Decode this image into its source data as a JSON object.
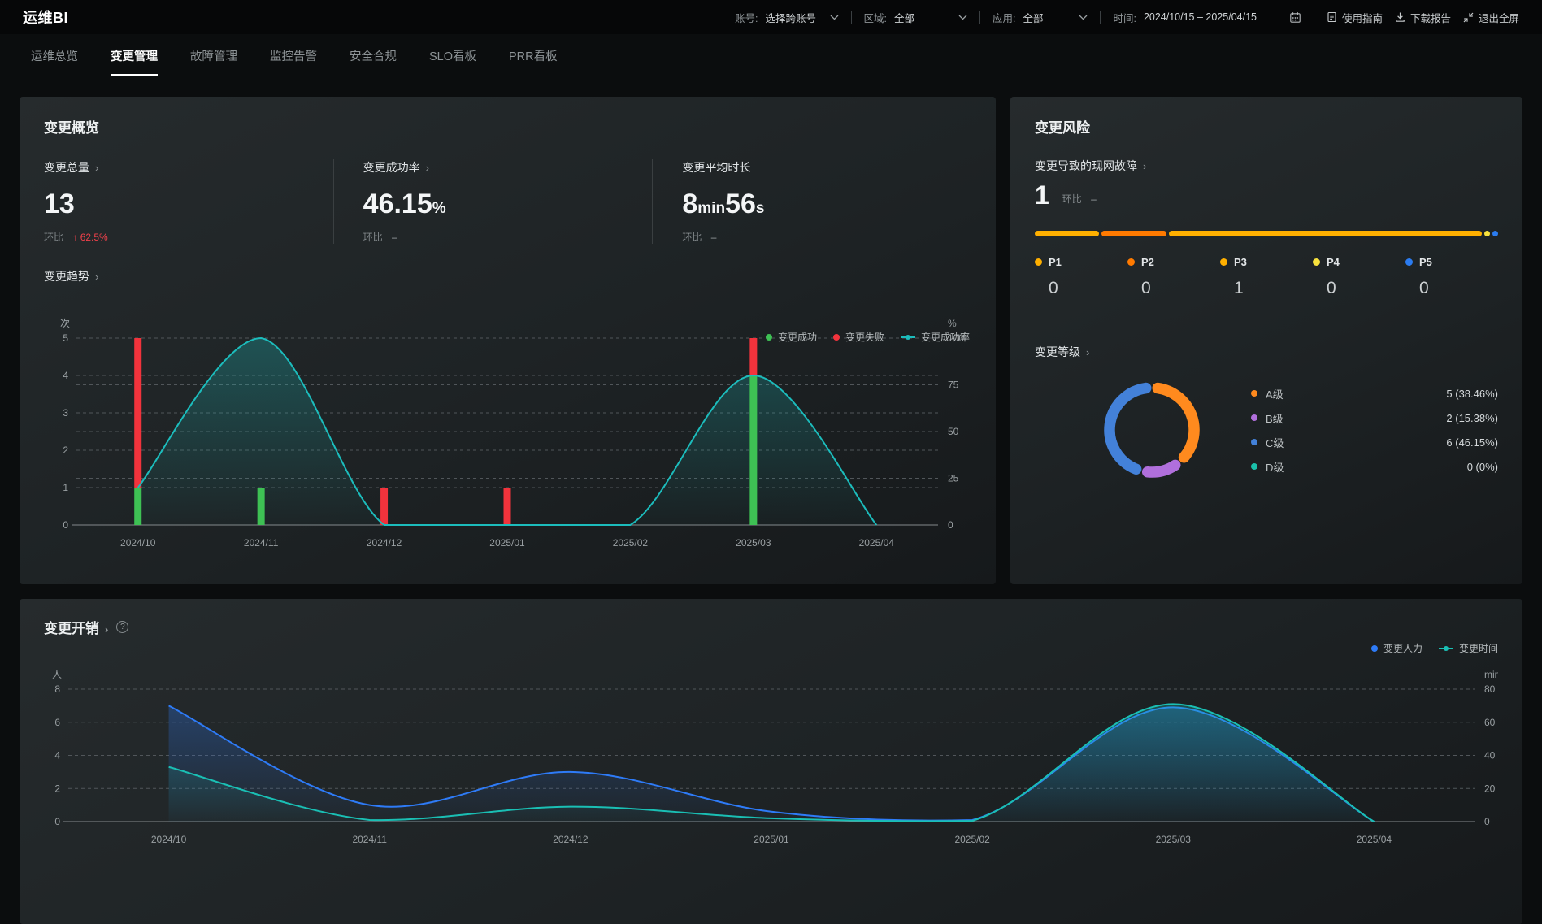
{
  "app": {
    "brand": "运维BI"
  },
  "icons": {
    "chevron_right": "›",
    "up_arrow": "↑",
    "help": "?"
  },
  "header": {
    "account": {
      "label": "账号:",
      "value": "选择跨账号"
    },
    "region": {
      "label": "区域:",
      "value": "全部"
    },
    "app_filter": {
      "label": "应用:",
      "value": "全部"
    },
    "time": {
      "label": "时间:",
      "value": "2024/10/15 – 2025/04/15"
    },
    "actions": {
      "guide": "使用指南",
      "download": "下载报告",
      "exit_fullscreen": "退出全屏"
    }
  },
  "tabs": [
    {
      "label": "运维总览"
    },
    {
      "label": "变更管理"
    },
    {
      "label": "故障管理"
    },
    {
      "label": "监控告警"
    },
    {
      "label": "安全合规"
    },
    {
      "label": "SLO看板"
    },
    {
      "label": "PRR看板"
    }
  ],
  "overview": {
    "title": "变更概览",
    "metrics": [
      {
        "label": "变更总量",
        "value": "13",
        "compare_label": "环比",
        "compare_value": "62.5%"
      },
      {
        "label": "变更成功率",
        "value": "46.15",
        "unit": "%",
        "compare_label": "环比",
        "compare_value": "–"
      },
      {
        "label": "变更平均时长",
        "v1": "8",
        "u1": "min",
        "v2": "56",
        "u2": "s",
        "compare_label": "环比",
        "compare_value": "–"
      }
    ],
    "trend_title": "变更趋势"
  },
  "risk": {
    "title": "变更风险",
    "incident_label": "变更导致的现网故障",
    "incident_value": "1",
    "incident_compare_label": "环比",
    "incident_compare_value": "–",
    "priority": {
      "segments": [
        {
          "color": "#ffb000",
          "width": "14%"
        },
        {
          "color": "#ff7a00",
          "width": "14%"
        },
        {
          "color": "#ffb000",
          "width": "68%"
        },
        {
          "color": "#f7e13d",
          "width": "1.2%"
        },
        {
          "color": "#2b7cf0",
          "width": "1.2%"
        }
      ],
      "items": [
        {
          "label": "P1",
          "value": "0",
          "color": "#ffb000"
        },
        {
          "label": "P2",
          "value": "0",
          "color": "#ff7a00"
        },
        {
          "label": "P3",
          "value": "1",
          "color": "#ffb000"
        },
        {
          "label": "P4",
          "value": "0",
          "color": "#f7e13d"
        },
        {
          "label": "P5",
          "value": "0",
          "color": "#2b7cf0"
        }
      ]
    },
    "grade_title": "变更等级"
  },
  "cost": {
    "title": "变更开销"
  },
  "chart_data": [
    {
      "name": "change-trend",
      "type": "bar",
      "title": "变更趋势",
      "categories": [
        "2024/10",
        "2024/11",
        "2024/12",
        "2025/01",
        "2025/02",
        "2025/03",
        "2025/04"
      ],
      "left_axis": {
        "name": "次",
        "min": 0,
        "max": 5,
        "ticks": [
          0,
          1,
          2,
          3,
          4,
          5
        ]
      },
      "right_axis": {
        "name": "%",
        "min": 0,
        "max": 100,
        "ticks": [
          0,
          25,
          50,
          75,
          100
        ]
      },
      "series": [
        {
          "name": "变更成功",
          "type": "bar",
          "stack": true,
          "color": "#3ec154",
          "values": [
            1,
            1,
            0,
            0,
            0,
            4,
            0
          ]
        },
        {
          "name": "变更失败",
          "type": "bar",
          "stack": true,
          "color": "#f2333c",
          "values": [
            4,
            0,
            1,
            1,
            0,
            1,
            0
          ]
        },
        {
          "name": "变更成功率",
          "type": "line",
          "axis": "right",
          "color": "#1cbcbc",
          "values": [
            20,
            100,
            0,
            0,
            0,
            80,
            0
          ]
        }
      ],
      "legend_position": "top-right",
      "grid": true
    },
    {
      "name": "change-grade",
      "type": "pie",
      "title": "变更等级",
      "slices": [
        {
          "label": "A级",
          "value": 5,
          "display": "5 (38.46%)",
          "color": "#ff8a1e"
        },
        {
          "label": "B级",
          "value": 2,
          "display": "2 (15.38%)",
          "color": "#b06fdc"
        },
        {
          "label": "C级",
          "value": 6,
          "display": "6 (46.15%)",
          "color": "#4381d9"
        },
        {
          "label": "D级",
          "value": 0,
          "display": "0 (0%)",
          "color": "#1ac0aa"
        }
      ]
    },
    {
      "name": "change-cost",
      "type": "line",
      "title": "变更开销",
      "categories": [
        "2024/10",
        "2024/11",
        "2024/12",
        "2025/01",
        "2025/02",
        "2025/03",
        "2025/04"
      ],
      "left_axis": {
        "name": "人",
        "min": 0,
        "max": 8,
        "ticks": [
          0,
          2,
          4,
          6,
          8
        ]
      },
      "right_axis": {
        "name": "min",
        "min": 0,
        "max": 80,
        "ticks": [
          0,
          20,
          40,
          60,
          80
        ]
      },
      "series": [
        {
          "name": "变更人力",
          "axis": "left",
          "color": "#2e7bf7",
          "values": [
            7,
            1,
            3,
            0.6,
            0.1,
            6.9,
            0
          ]
        },
        {
          "name": "变更时间",
          "axis": "right",
          "color": "#1abfb4",
          "values": [
            33,
            1,
            9,
            2,
            0.5,
            71,
            0
          ]
        }
      ],
      "legend_position": "top-right",
      "grid": true
    }
  ]
}
